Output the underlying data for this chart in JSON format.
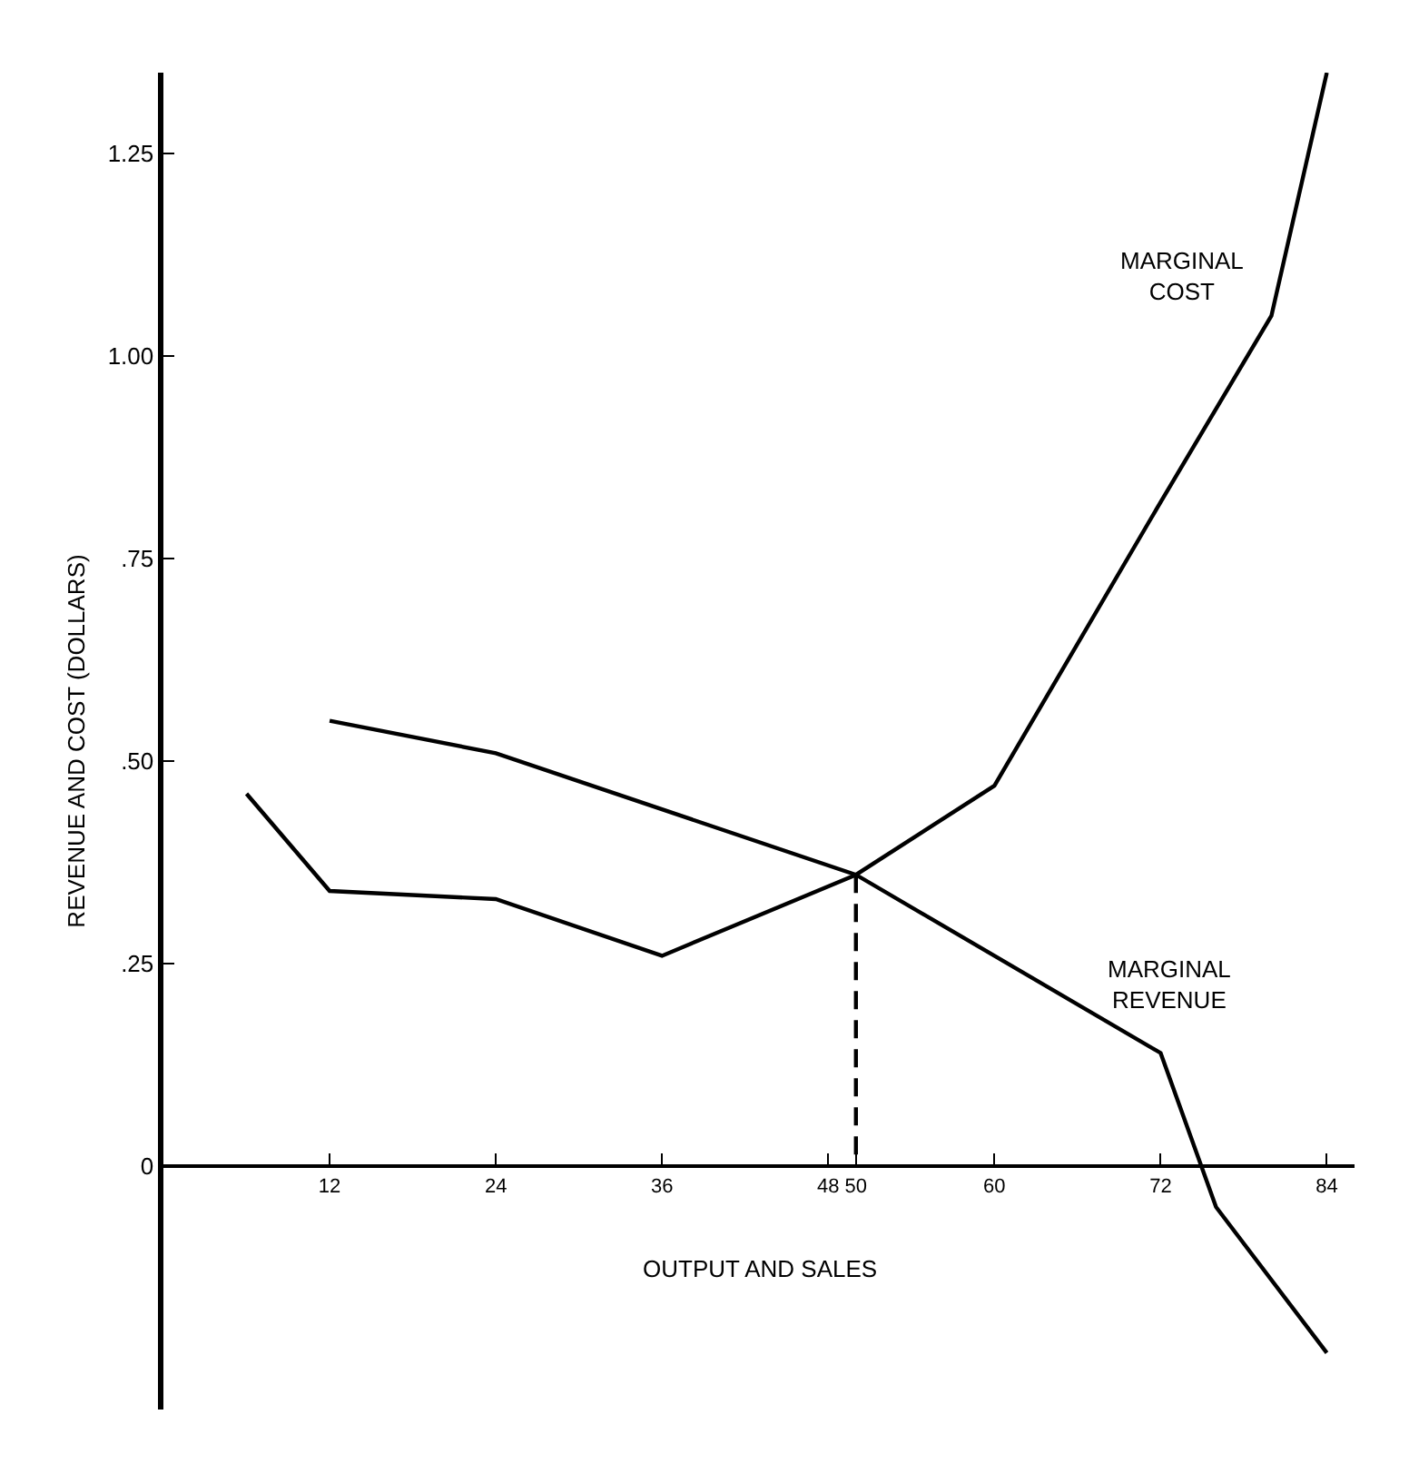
{
  "chart_data": {
    "type": "line",
    "xlabel": "OUTPUT AND SALES",
    "ylabel": "REVENUE AND COST (DOLLARS)",
    "xlim": [
      0,
      86
    ],
    "ylim": [
      -0.3,
      1.35
    ],
    "xticks": [
      12,
      24,
      36,
      48,
      50,
      60,
      72,
      84
    ],
    "yticks": [
      0,
      {
        "value": 0.25,
        "label": ".25"
      },
      {
        "value": 0.5,
        "label": ".50"
      },
      {
        "value": 0.75,
        "label": ".75"
      },
      {
        "value": 1.0,
        "label": "1.00"
      },
      {
        "value": 1.25,
        "label": "1.25"
      }
    ],
    "legend": false,
    "marker": "none",
    "line_style": "solid",
    "series": [
      {
        "name": "MARGINAL COST",
        "color": "#000000",
        "x": [
          6,
          12,
          24,
          36,
          50,
          60,
          72,
          80,
          84
        ],
        "values": [
          0.46,
          0.34,
          0.33,
          0.26,
          0.36,
          0.47,
          0.82,
          1.05,
          1.35
        ]
      },
      {
        "name": "MARGINAL REVENUE",
        "color": "#000000",
        "x": [
          12,
          24,
          50,
          72,
          76,
          84
        ],
        "values": [
          0.55,
          0.51,
          0.36,
          0.14,
          -0.05,
          -0.23
        ]
      },
      {
        "color": "#000000",
        "line_style": "dashed",
        "x": [
          50,
          50
        ],
        "values": [
          0.36,
          0
        ]
      }
    ]
  }
}
